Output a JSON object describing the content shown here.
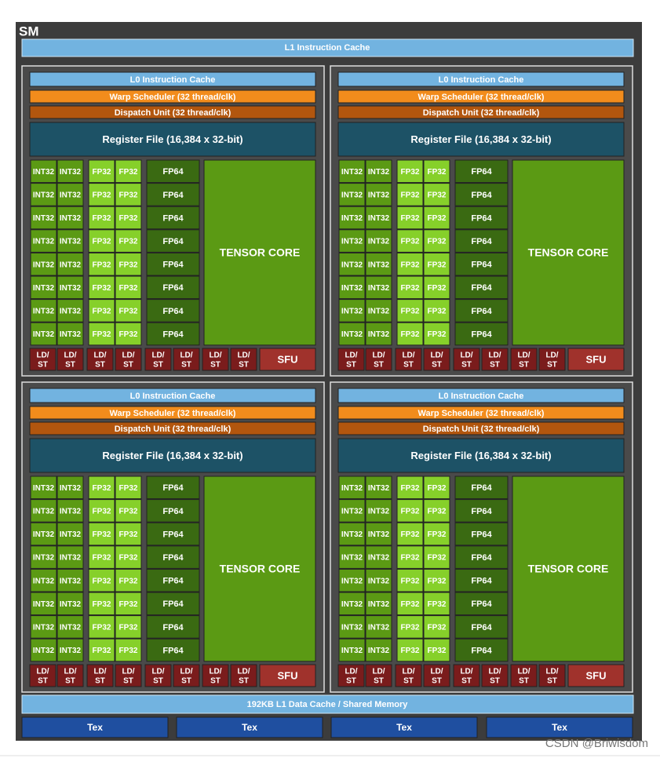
{
  "title": "SM",
  "l1_instruction_cache": "L1 Instruction Cache",
  "partitions": [
    {
      "l0_instruction_cache": "L0 Instruction Cache",
      "warp_scheduler": "Warp Scheduler (32 thread/clk)",
      "dispatch_unit": "Dispatch Unit (32 thread/clk)",
      "register_file": "Register File (16,384 x 32-bit)",
      "int32": "INT32",
      "fp32": "FP32",
      "fp64": "FP64",
      "tensor_core": "TENSOR CORE",
      "ld_st": [
        "LD/",
        "ST"
      ],
      "sfu": "SFU"
    },
    {
      "l0_instruction_cache": "L0 Instruction Cache",
      "warp_scheduler": "Warp Scheduler (32 thread/clk)",
      "dispatch_unit": "Dispatch Unit (32 thread/clk)",
      "register_file": "Register File (16,384 x 32-bit)",
      "int32": "INT32",
      "fp32": "FP32",
      "fp64": "FP64",
      "tensor_core": "TENSOR CORE",
      "ld_st": [
        "LD/",
        "ST"
      ],
      "sfu": "SFU"
    },
    {
      "l0_instruction_cache": "L0 Instruction Cache",
      "warp_scheduler": "Warp Scheduler (32 thread/clk)",
      "dispatch_unit": "Dispatch Unit (32 thread/clk)",
      "register_file": "Register File (16,384 x 32-bit)",
      "int32": "INT32",
      "fp32": "FP32",
      "fp64": "FP64",
      "tensor_core": "TENSOR CORE",
      "ld_st": [
        "LD/",
        "ST"
      ],
      "sfu": "SFU"
    },
    {
      "l0_instruction_cache": "L0 Instruction Cache",
      "warp_scheduler": "Warp Scheduler (32 thread/clk)",
      "dispatch_unit": "Dispatch Unit (32 thread/clk)",
      "register_file": "Register File (16,384 x 32-bit)",
      "int32": "INT32",
      "fp32": "FP32",
      "fp64": "FP64",
      "tensor_core": "TENSOR CORE",
      "ld_st": [
        "LD/",
        "ST"
      ],
      "sfu": "SFU"
    }
  ],
  "l1_data_cache": "192KB L1 Data Cache / Shared Memory",
  "tex": [
    "Tex",
    "Tex",
    "Tex",
    "Tex"
  ],
  "watermark": "CSDN @Briwisdom"
}
